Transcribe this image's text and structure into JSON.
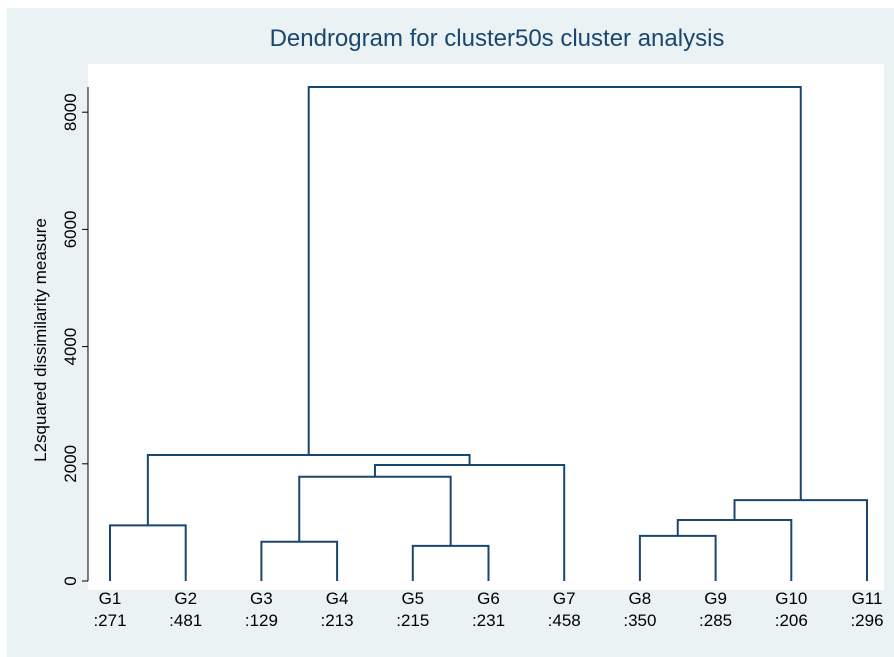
{
  "chart_data": {
    "type": "dendrogram",
    "title": "Dendrogram for cluster50s cluster analysis",
    "y_label": "L2squared dissimilarity measure",
    "color": "#1a476f",
    "leaves": [
      {
        "name": "G1",
        "count": ":271"
      },
      {
        "name": "G2",
        "count": ":481"
      },
      {
        "name": "G3",
        "count": ":129"
      },
      {
        "name": "G4",
        "count": ":213"
      },
      {
        "name": "G5",
        "count": ":215"
      },
      {
        "name": "G6",
        "count": ":231"
      },
      {
        "name": "G7",
        "count": ":458"
      },
      {
        "name": "G8",
        "count": ":350"
      },
      {
        "name": "G9",
        "count": ":285"
      },
      {
        "name": "G10",
        "count": ":206"
      },
      {
        "name": "G11",
        "count": ":296"
      }
    ],
    "merges": [
      {
        "children": [
          0,
          1
        ],
        "height": 950
      },
      {
        "children": [
          2,
          3
        ],
        "height": 670
      },
      {
        "children": [
          4,
          5
        ],
        "height": 600
      },
      {
        "children": [
          12,
          13
        ],
        "height": 1780
      },
      {
        "children": [
          14,
          6
        ],
        "height": 1980
      },
      {
        "children": [
          11,
          15
        ],
        "height": 2150
      },
      {
        "children": [
          7,
          8
        ],
        "height": 770
      },
      {
        "children": [
          17,
          9
        ],
        "height": 1040
      },
      {
        "children": [
          18,
          10
        ],
        "height": 1380
      },
      {
        "children": [
          16,
          19
        ],
        "height": 8430
      }
    ],
    "ylim": [
      0,
      8430
    ],
    "yticks": [
      0,
      2000,
      4000,
      6000,
      8000
    ]
  }
}
